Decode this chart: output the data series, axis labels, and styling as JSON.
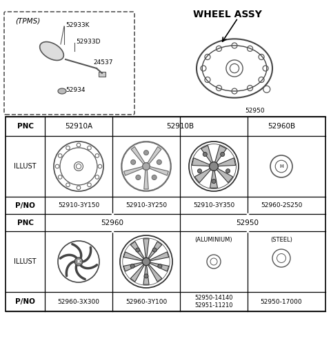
{
  "title": "WHEEL ASSY",
  "bg_color": "#ffffff",
  "border_color": "#000000",
  "table_header_row": [
    "PNC",
    "52910A",
    "52910B",
    "",
    "52960B"
  ],
  "row1_pno": [
    "52910-3Y150",
    "52910-3Y250",
    "52910-3Y350",
    "52960-2S250"
  ],
  "row2_pnc": [
    "52960",
    "",
    "52950",
    ""
  ],
  "row2_labels": [
    "",
    "",
    "(ALUMINIUM)",
    "(STEEL)"
  ],
  "row2_pno": [
    "52960-3X300",
    "52960-3Y100",
    "52950-14140\n52951-11210",
    "52950-17000"
  ],
  "tpms_label": "(TPMS)",
  "tpms_parts": [
    "52933K",
    "52933D",
    "24537",
    "52934"
  ],
  "wheel_label": "52950"
}
